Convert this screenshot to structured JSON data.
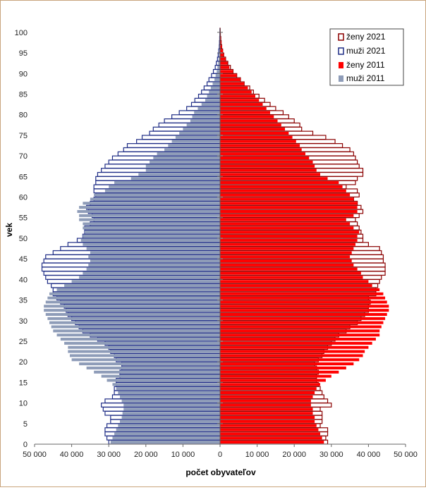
{
  "chart_data": {
    "type": "bar",
    "orientation": "horizontal-population-pyramid",
    "xlabel": "počet obyvateľov",
    "ylabel": "vek",
    "xlim": [
      -50000,
      50000
    ],
    "ylim": [
      0,
      100
    ],
    "x_tick_values": [
      -50000,
      -40000,
      -30000,
      -20000,
      -10000,
      0,
      10000,
      20000,
      30000,
      40000,
      50000
    ],
    "x_tick_labels": [
      "50 000",
      "40 000",
      "30 000",
      "20 000",
      "10 000",
      "0",
      "10 000",
      "20 000",
      "30 000",
      "40 000",
      "50 000"
    ],
    "y_ticks": [
      "0",
      "5",
      "10",
      "15",
      "20",
      "25",
      "30",
      "35",
      "40",
      "45",
      "50",
      "55",
      "60",
      "65",
      "70",
      "75",
      "80",
      "85",
      "90",
      "95",
      "100"
    ],
    "legend_position": "top-right",
    "legend": [
      "ženy 2021",
      "muži 2021",
      "ženy 2011",
      "muži 2011"
    ],
    "colors": {
      "zeny_2021_fill": "#ffffff",
      "zeny_2021_edge": "#8b0000",
      "muzi_2021_fill": "#ffffff",
      "muzi_2021_edge": "#1f2d86",
      "zeny_2011": "#ff0000",
      "muzi_2011": "#8e9cb8"
    },
    "ages": [
      0,
      1,
      2,
      3,
      4,
      5,
      6,
      7,
      8,
      9,
      10,
      11,
      12,
      13,
      14,
      15,
      16,
      17,
      18,
      19,
      20,
      21,
      22,
      23,
      24,
      25,
      26,
      27,
      28,
      29,
      30,
      31,
      32,
      33,
      34,
      35,
      36,
      37,
      38,
      39,
      40,
      41,
      42,
      43,
      44,
      45,
      46,
      47,
      48,
      49,
      50,
      51,
      52,
      53,
      54,
      55,
      56,
      57,
      58,
      59,
      60,
      61,
      62,
      63,
      64,
      65,
      66,
      67,
      68,
      69,
      70,
      71,
      72,
      73,
      74,
      75,
      76,
      77,
      78,
      79,
      80,
      81,
      82,
      83,
      84,
      85,
      86,
      87,
      88,
      89,
      90,
      91,
      92,
      93,
      94,
      95,
      96,
      97,
      98,
      99,
      100
    ],
    "series": [
      {
        "name": "muži 2011",
        "values": [
          29500,
          29000,
          28500,
          28000,
          27500,
          27000,
          26500,
          26300,
          26000,
          26000,
          26500,
          27000,
          27500,
          28000,
          29000,
          30500,
          32000,
          34000,
          36000,
          38000,
          40000,
          40500,
          41000,
          41000,
          42000,
          43000,
          44000,
          45000,
          45500,
          46000,
          46500,
          47000,
          47500,
          47500,
          47000,
          46500,
          46000,
          44000,
          42000,
          40000,
          38000,
          37000,
          36000,
          35500,
          35000,
          35500,
          35000,
          36000,
          37000,
          37500,
          37000,
          36500,
          37000,
          37000,
          38000,
          38000,
          38500,
          38000,
          37000,
          35000,
          34000,
          31000,
          30000,
          28500,
          24000,
          22000,
          20000,
          20000,
          19000,
          18000,
          17000,
          15000,
          14000,
          13000,
          12000,
          11000,
          10000,
          9000,
          8000,
          7500,
          7000,
          6000,
          5000,
          4000,
          3500,
          3000,
          2500,
          2000,
          1500,
          1200,
          900,
          700,
          500,
          400,
          300,
          200,
          150,
          100,
          60,
          40,
          30
        ]
      },
      {
        "name": "muži 2021",
        "values": [
          30000,
          30500,
          31000,
          31000,
          30500,
          29500,
          29500,
          31000,
          31500,
          32000,
          31000,
          29000,
          28500,
          28500,
          28000,
          28000,
          27000,
          27000,
          26500,
          26500,
          28000,
          28500,
          29500,
          30000,
          31000,
          33000,
          35000,
          37000,
          38000,
          39000,
          40000,
          41000,
          41500,
          42000,
          43000,
          44000,
          45000,
          45000,
          45500,
          46500,
          47000,
          47500,
          48000,
          48000,
          47500,
          47000,
          45000,
          43000,
          41000,
          38500,
          37000,
          36500,
          36500,
          35000,
          34000,
          34500,
          35500,
          36000,
          35000,
          34000,
          33500,
          34000,
          34000,
          33500,
          33500,
          33000,
          32000,
          31000,
          30000,
          29000,
          27500,
          26000,
          25000,
          22500,
          21000,
          19000,
          18000,
          16500,
          15000,
          13000,
          11000,
          9000,
          7700,
          6800,
          5800,
          5000,
          4300,
          3500,
          3000,
          2300,
          1800,
          1300,
          1000,
          700,
          500,
          350,
          200,
          150,
          100,
          60,
          40
        ]
      },
      {
        "name": "ženy 2011",
        "values": [
          28000,
          27500,
          27000,
          26500,
          26000,
          25500,
          25500,
          25000,
          25000,
          24500,
          24500,
          25000,
          25500,
          26000,
          27000,
          28500,
          30000,
          32000,
          34000,
          36000,
          37500,
          38500,
          39000,
          40000,
          41000,
          42000,
          43000,
          43000,
          43500,
          44000,
          44500,
          45000,
          45500,
          45500,
          45000,
          44500,
          44000,
          43000,
          41000,
          40000,
          38500,
          38000,
          37000,
          36000,
          35500,
          35000,
          35500,
          36000,
          36500,
          37000,
          37000,
          37500,
          36000,
          35000,
          34000,
          36000,
          37000,
          37000,
          37000,
          36000,
          35000,
          34000,
          33000,
          32000,
          29000,
          27000,
          26000,
          25500,
          25000,
          24000,
          23000,
          22000,
          21500,
          20500,
          19500,
          18500,
          17500,
          16500,
          15500,
          14500,
          13500,
          12500,
          11500,
          10500,
          9500,
          8500,
          7500,
          6500,
          5500,
          4500,
          3500,
          2500,
          2000,
          1500,
          1000,
          800,
          500,
          300,
          200,
          100,
          50
        ]
      },
      {
        "name": "ženy 2021",
        "values": [
          29000,
          28500,
          29000,
          29000,
          27000,
          27500,
          27500,
          27500,
          27000,
          30000,
          29000,
          28000,
          27500,
          27000,
          26500,
          26000,
          26000,
          26500,
          26000,
          25500,
          26500,
          27500,
          28000,
          29000,
          30000,
          31000,
          32000,
          34000,
          35000,
          37000,
          38000,
          39000,
          40000,
          40000,
          40500,
          40000,
          42000,
          42000,
          42500,
          43000,
          43500,
          44500,
          44500,
          44500,
          44000,
          44000,
          43500,
          43000,
          40000,
          38500,
          38500,
          38000,
          37500,
          37000,
          36500,
          37500,
          38500,
          38000,
          37000,
          36000,
          37500,
          37000,
          34000,
          36500,
          37000,
          38500,
          38500,
          37500,
          37000,
          36500,
          36000,
          35000,
          33000,
          31000,
          28500,
          25000,
          22000,
          21500,
          20000,
          18500,
          17000,
          15000,
          13500,
          12000,
          10500,
          9000,
          8000,
          6500,
          5500,
          4500,
          3500,
          2800,
          2100,
          1500,
          1000,
          700,
          450,
          300,
          200,
          100,
          50
        ]
      }
    ]
  }
}
